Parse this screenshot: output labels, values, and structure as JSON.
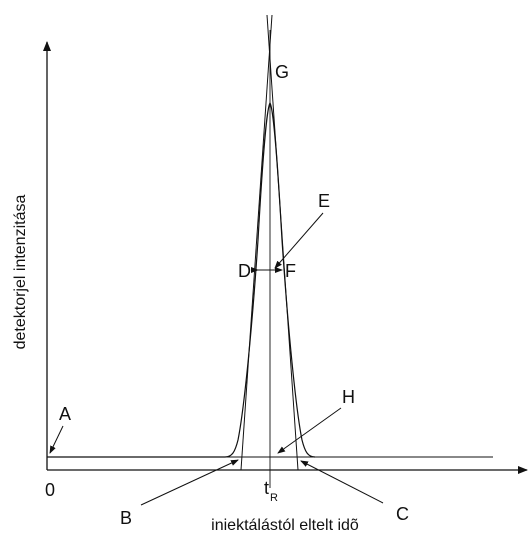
{
  "diagram": {
    "y_axis_label": "detektorjel intenzitása",
    "x_axis_label": "iniektálástól eltelt idõ",
    "origin_label": "0",
    "retention_time_label": "t",
    "retention_time_subscript": "R",
    "points": {
      "A": "A",
      "B": "B",
      "C": "C",
      "D": "D",
      "E": "E",
      "F": "F",
      "G": "G",
      "H": "H"
    },
    "colors": {
      "line": "#111111",
      "background": "#ffffff"
    }
  }
}
